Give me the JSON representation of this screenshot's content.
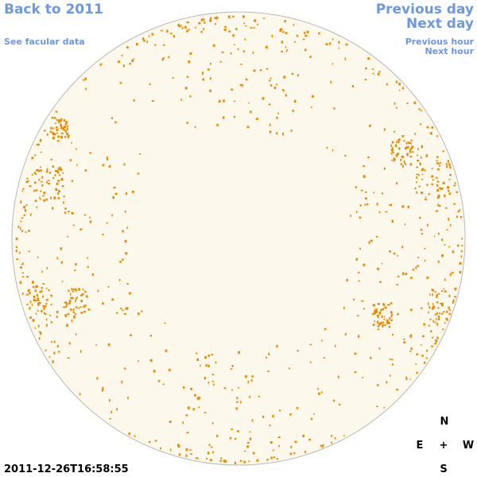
{
  "links": {
    "back": "Back to 2011",
    "facular": "See facular data",
    "previous_day": "Previous day",
    "next_day": "Next day",
    "previous_hour": "Previous hour",
    "next_hour": "Next hour"
  },
  "compass": {
    "north": "N",
    "east": "E",
    "center": "+",
    "west": "W",
    "south": "S"
  },
  "timestamp": "2011-12-26T16:58:55"
}
